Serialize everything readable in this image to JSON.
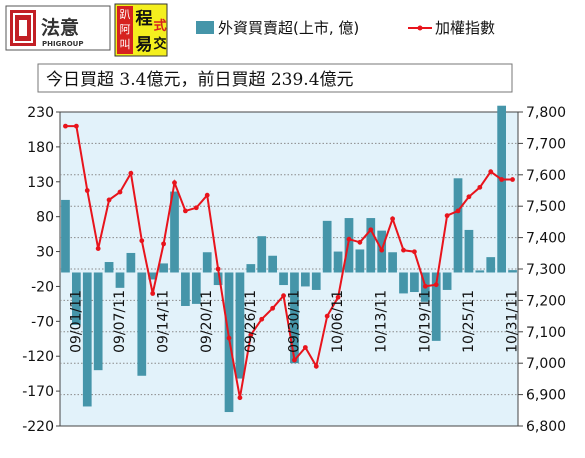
{
  "header": {
    "logo1": {
      "text": "法意",
      "sub": "PHIGROUP"
    },
    "logo2": {
      "chars": [
        "程",
        "式",
        "交",
        "易"
      ],
      "small": [
        "趴",
        "阿",
        "叫"
      ]
    }
  },
  "banner": "今日買超 3.4億元，前日買超 239.4億元",
  "chart_data": {
    "type": "bar",
    "legend_position": "top",
    "legend": {
      "bar_label": "外資買賣超(上市, 億)",
      "line_label": "加權指數"
    },
    "colors": {
      "bar": "#4595a9",
      "line": "#e8141c",
      "plot_bg": "#e2f2fa",
      "grid": "#8a8a8a"
    },
    "left_axis": {
      "min": -220,
      "max": 230,
      "ticks": [
        "230",
        "180",
        "130",
        "80",
        "30",
        "-20",
        "-70",
        "-120",
        "-170",
        "-220"
      ]
    },
    "right_axis": {
      "min": 6800,
      "max": 7800,
      "ticks": [
        "7,800",
        "7,700",
        "7,600",
        "7,500",
        "7,400",
        "7,300",
        "7,200",
        "7,100",
        "7,000",
        "6,900",
        "6,800"
      ]
    },
    "grid": true,
    "x_ticks": [
      {
        "label": "09/01/11",
        "index": 1
      },
      {
        "label": "09/07/11",
        "index": 5
      },
      {
        "label": "09/14/11",
        "index": 9
      },
      {
        "label": "09/20/11",
        "index": 13
      },
      {
        "label": "09/26/11",
        "index": 17
      },
      {
        "label": "09/30/11",
        "index": 21
      },
      {
        "label": "10/06/11",
        "index": 25
      },
      {
        "label": "10/13/11",
        "index": 29
      },
      {
        "label": "10/19/11",
        "index": 33
      },
      {
        "label": "10/25/11",
        "index": 37
      },
      {
        "label": "10/31/11",
        "index": 41
      }
    ],
    "bar_values": [
      104,
      -75,
      -192,
      -140,
      15,
      -22,
      28,
      -148,
      -10,
      13,
      116,
      -48,
      -45,
      29,
      -18,
      -200,
      -152,
      12,
      52,
      24,
      -18,
      -130,
      -20,
      -25,
      74,
      30,
      78,
      33,
      78,
      60,
      29,
      -30,
      -28,
      -42,
      -98,
      -25,
      135,
      61,
      3,
      22,
      239,
      3.4
    ],
    "index_values": [
      7755,
      7755,
      7550,
      7365,
      7520,
      7545,
      7605,
      7390,
      7222,
      7380,
      7575,
      7485,
      7495,
      7535,
      7300,
      7080,
      6890,
      7090,
      7140,
      7175,
      7215,
      7010,
      7050,
      6990,
      7150,
      7210,
      7395,
      7385,
      7425,
      7360,
      7460,
      7360,
      7355,
      7245,
      7250,
      7470,
      7485,
      7530,
      7560,
      7610,
      7585,
      7585
    ]
  }
}
